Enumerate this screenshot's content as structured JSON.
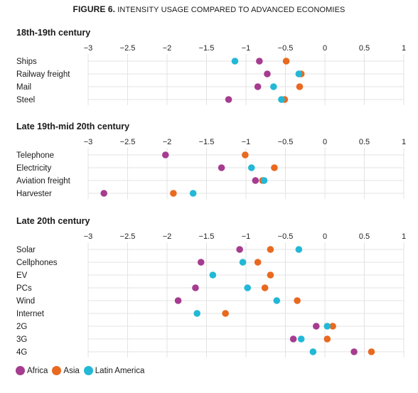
{
  "figure": {
    "label": "FIGURE 6.",
    "title": "INTENSITY USAGE COMPARED TO ADVANCED ECONOMIES"
  },
  "colors": {
    "Africa": "#a63c8f",
    "Asia": "#e8691f",
    "Latin America": "#22b8d6"
  },
  "legend": [
    "Africa",
    "Asia",
    "Latin America"
  ],
  "chart_data": [
    {
      "type": "scatter",
      "title": "18th-19th century",
      "xlim": [
        -3,
        1
      ],
      "xticks": [
        "−3",
        "−2.5",
        "−2",
        "−1.5",
        "−1",
        "−0.5",
        "0",
        "0.5",
        "1"
      ],
      "categories": [
        "Ships",
        "Railway freight",
        "Mail",
        "Steel"
      ],
      "series": [
        {
          "name": "Africa",
          "values": [
            -0.83,
            -0.73,
            -0.85,
            -1.22
          ]
        },
        {
          "name": "Asia",
          "values": [
            -0.49,
            -0.3,
            -0.32,
            -0.51
          ]
        },
        {
          "name": "Latin America",
          "values": [
            -1.14,
            -0.33,
            -0.65,
            -0.55
          ]
        }
      ]
    },
    {
      "type": "scatter",
      "title": "Late 19th-mid 20th century",
      "xlim": [
        -3,
        1
      ],
      "xticks": [
        "−3",
        "−2.5",
        "−2",
        "−1.5",
        "−1",
        "−0.5",
        "0",
        "0.5",
        "1"
      ],
      "categories": [
        "Telephone",
        "Electricity",
        "Aviation freight",
        "Harvester"
      ],
      "series": [
        {
          "name": "Africa",
          "values": [
            -2.02,
            -1.31,
            -0.88,
            -2.8
          ]
        },
        {
          "name": "Asia",
          "values": [
            -1.01,
            -0.64,
            -0.79,
            -1.92
          ]
        },
        {
          "name": "Latin America",
          "values": [
            null,
            -0.93,
            -0.77,
            -1.67
          ]
        }
      ]
    },
    {
      "type": "scatter",
      "title": "Late 20th century",
      "xlim": [
        -3,
        1
      ],
      "xticks": [
        "−3",
        "−2.5",
        "−2",
        "−1.5",
        "−1",
        "−0.5",
        "0",
        "0.5",
        "1"
      ],
      "categories": [
        "Solar",
        "Cellphones",
        "EV",
        "PCs",
        "Wind",
        "Internet",
        "2G",
        "3G",
        "4G"
      ],
      "series": [
        {
          "name": "Africa",
          "values": [
            -1.08,
            -1.57,
            null,
            -1.64,
            -1.86,
            null,
            -0.11,
            -0.4,
            0.37
          ]
        },
        {
          "name": "Asia",
          "values": [
            -0.69,
            -0.85,
            -0.69,
            -0.76,
            -0.35,
            -1.26,
            0.1,
            0.03,
            0.59
          ]
        },
        {
          "name": "Latin America",
          "values": [
            -0.33,
            -1.04,
            -1.42,
            -0.98,
            -0.61,
            -1.62,
            0.03,
            -0.3,
            -0.15
          ]
        }
      ]
    }
  ]
}
